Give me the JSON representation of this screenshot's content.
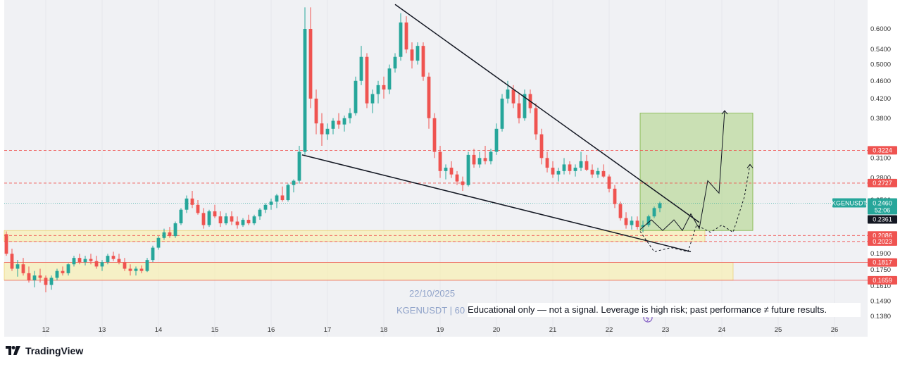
{
  "app": {
    "brand": "TradingView"
  },
  "watermark": {
    "date": "22/10/2025",
    "symbol": "KGENUSDT | 60"
  },
  "disclaimer": "Educational only — not a signal. Leverage is high risk; past performance ≠ future results.",
  "colors": {
    "up": "#26a69a",
    "down": "#ef5350",
    "zone": "#fbeea0",
    "target_box": "#9ccc65",
    "level_line": "#ef5350",
    "trendline": "#131722",
    "symbol_tag": "#26a69a",
    "price_tag": "#131722"
  },
  "chart_data": {
    "type": "candlestick",
    "symbol": "KGENUSDT",
    "timeframe": "60",
    "y_scale": "log",
    "ylim": [
      0.135,
      0.68
    ],
    "x_axis_ticks": [
      "12",
      "13",
      "14",
      "15",
      "16",
      "17",
      "18",
      "19",
      "20",
      "21",
      "22",
      "23",
      "24",
      "25",
      "26"
    ],
    "y_axis_ticks": [
      0.6,
      0.54,
      0.5,
      0.46,
      0.42,
      0.38,
      0.31,
      0.28,
      0.25,
      0.19,
      0.175,
      0.161,
      0.149,
      0.138
    ],
    "price_levels": [
      {
        "label": "0.3224",
        "value": 0.3224,
        "style": "dashed"
      },
      {
        "label": "0.2727",
        "value": 0.2727,
        "style": "dashed"
      },
      {
        "label": "0.2086",
        "value": 0.2086,
        "style": "dashed"
      },
      {
        "label": "0.2023",
        "value": 0.2023,
        "style": "dashed"
      },
      {
        "label": "0.1817",
        "value": 0.1817,
        "style": "solid"
      },
      {
        "label": "0.1659",
        "value": 0.1659,
        "style": "solid"
      }
    ],
    "last_price": {
      "symbol": "KGENUSDT",
      "price": "0.2460",
      "countdown": "52:06",
      "other": "0.2361",
      "value": 0.246
    },
    "zones": [
      {
        "name": "support-upper",
        "from_day": 11.0,
        "to_day": 23.7,
        "low": 0.2023,
        "high": 0.214
      },
      {
        "name": "support-lower",
        "from_day": 11.0,
        "to_day": 24.2,
        "low": 0.1659,
        "high": 0.1817
      }
    ],
    "target_box": {
      "from_day": 22.55,
      "to_day": 24.55,
      "low": 0.214,
      "high": 0.39
    },
    "trendlines": [
      {
        "name": "upper",
        "from": [
          18.2,
          0.68
        ],
        "to": [
          23.6,
          0.223
        ]
      },
      {
        "name": "lower",
        "from": [
          16.55,
          0.315
        ],
        "to": [
          23.45,
          0.192
        ]
      }
    ],
    "projection_solid": [
      [
        22.55,
        0.215
      ],
      [
        22.75,
        0.226
      ],
      [
        22.95,
        0.214
      ],
      [
        23.15,
        0.226
      ],
      [
        23.3,
        0.214
      ],
      [
        23.45,
        0.233
      ],
      [
        23.6,
        0.216
      ],
      [
        23.75,
        0.276
      ],
      [
        23.95,
        0.259
      ],
      [
        24.05,
        0.395
      ]
    ],
    "projection_dashed": [
      [
        22.55,
        0.213
      ],
      [
        22.8,
        0.192
      ],
      [
        23.1,
        0.196
      ],
      [
        23.4,
        0.192
      ],
      [
        23.55,
        0.22
      ],
      [
        23.8,
        0.212
      ],
      [
        24.0,
        0.22
      ],
      [
        24.2,
        0.212
      ],
      [
        24.4,
        0.254
      ],
      [
        24.5,
        0.3
      ]
    ],
    "candles": [
      [
        11.0,
        0.236,
        0.242,
        0.228,
        0.231
      ],
      [
        11.1,
        0.231,
        0.236,
        0.222,
        0.224
      ],
      [
        11.2,
        0.224,
        0.228,
        0.208,
        0.21
      ],
      [
        11.3,
        0.21,
        0.213,
        0.188,
        0.19
      ],
      [
        11.4,
        0.19,
        0.195,
        0.174,
        0.176
      ],
      [
        11.5,
        0.176,
        0.184,
        0.169,
        0.18
      ],
      [
        11.6,
        0.18,
        0.186,
        0.17,
        0.172
      ],
      [
        11.7,
        0.172,
        0.178,
        0.164,
        0.166
      ],
      [
        11.8,
        0.166,
        0.174,
        0.16,
        0.17
      ],
      [
        11.9,
        0.17,
        0.176,
        0.164,
        0.168
      ],
      [
        12.0,
        0.168,
        0.17,
        0.156,
        0.162
      ],
      [
        12.1,
        0.162,
        0.17,
        0.158,
        0.168
      ],
      [
        12.2,
        0.168,
        0.176,
        0.166,
        0.174
      ],
      [
        12.3,
        0.174,
        0.178,
        0.17,
        0.172
      ],
      [
        12.4,
        0.172,
        0.181,
        0.17,
        0.18
      ],
      [
        12.5,
        0.18,
        0.188,
        0.178,
        0.186
      ],
      [
        12.6,
        0.186,
        0.19,
        0.18,
        0.182
      ],
      [
        12.7,
        0.182,
        0.188,
        0.179,
        0.185
      ],
      [
        12.8,
        0.185,
        0.19,
        0.18,
        0.183
      ],
      [
        12.9,
        0.183,
        0.188,
        0.176,
        0.178
      ],
      [
        13.0,
        0.178,
        0.184,
        0.174,
        0.182
      ],
      [
        13.1,
        0.182,
        0.19,
        0.18,
        0.188
      ],
      [
        13.2,
        0.188,
        0.192,
        0.183,
        0.185
      ],
      [
        13.3,
        0.185,
        0.19,
        0.18,
        0.182
      ],
      [
        13.4,
        0.182,
        0.186,
        0.174,
        0.176
      ],
      [
        13.5,
        0.176,
        0.18,
        0.17,
        0.174
      ],
      [
        13.6,
        0.174,
        0.178,
        0.17,
        0.176
      ],
      [
        13.7,
        0.176,
        0.179,
        0.172,
        0.174
      ],
      [
        13.8,
        0.174,
        0.186,
        0.173,
        0.184
      ],
      [
        13.9,
        0.184,
        0.198,
        0.182,
        0.196
      ],
      [
        14.0,
        0.196,
        0.208,
        0.194,
        0.206
      ],
      [
        14.1,
        0.206,
        0.216,
        0.204,
        0.212
      ],
      [
        14.2,
        0.212,
        0.218,
        0.206,
        0.208
      ],
      [
        14.3,
        0.208,
        0.224,
        0.206,
        0.222
      ],
      [
        14.4,
        0.222,
        0.24,
        0.22,
        0.238
      ],
      [
        14.5,
        0.238,
        0.256,
        0.234,
        0.252
      ],
      [
        14.6,
        0.252,
        0.262,
        0.24,
        0.244
      ],
      [
        14.7,
        0.244,
        0.25,
        0.232,
        0.234
      ],
      [
        14.8,
        0.234,
        0.24,
        0.216,
        0.22
      ],
      [
        14.9,
        0.22,
        0.238,
        0.218,
        0.236
      ],
      [
        15.0,
        0.236,
        0.244,
        0.228,
        0.23
      ],
      [
        15.1,
        0.23,
        0.236,
        0.218,
        0.222
      ],
      [
        15.2,
        0.222,
        0.234,
        0.22,
        0.23
      ],
      [
        15.3,
        0.23,
        0.236,
        0.22,
        0.224
      ],
      [
        15.4,
        0.224,
        0.23,
        0.216,
        0.22
      ],
      [
        15.5,
        0.22,
        0.228,
        0.218,
        0.226
      ],
      [
        15.6,
        0.226,
        0.232,
        0.22,
        0.222
      ],
      [
        15.7,
        0.222,
        0.232,
        0.22,
        0.23
      ],
      [
        15.8,
        0.23,
        0.24,
        0.226,
        0.238
      ],
      [
        15.9,
        0.238,
        0.246,
        0.234,
        0.244
      ],
      [
        16.0,
        0.244,
        0.252,
        0.238,
        0.248
      ],
      [
        16.1,
        0.248,
        0.258,
        0.24,
        0.256
      ],
      [
        16.2,
        0.256,
        0.268,
        0.248,
        0.25
      ],
      [
        16.3,
        0.25,
        0.272,
        0.248,
        0.27
      ],
      [
        16.4,
        0.27,
        0.278,
        0.26,
        0.276
      ],
      [
        16.5,
        0.276,
        0.33,
        0.272,
        0.32
      ],
      [
        16.6,
        0.32,
        0.67,
        0.315,
        0.6
      ],
      [
        16.7,
        0.6,
        0.67,
        0.4,
        0.42
      ],
      [
        16.8,
        0.42,
        0.44,
        0.35,
        0.37
      ],
      [
        16.9,
        0.37,
        0.39,
        0.33,
        0.35
      ],
      [
        17.0,
        0.35,
        0.37,
        0.34,
        0.36
      ],
      [
        17.1,
        0.36,
        0.38,
        0.35,
        0.375
      ],
      [
        17.2,
        0.375,
        0.39,
        0.36,
        0.368
      ],
      [
        17.3,
        0.368,
        0.385,
        0.355,
        0.38
      ],
      [
        17.4,
        0.38,
        0.4,
        0.37,
        0.39
      ],
      [
        17.5,
        0.39,
        0.47,
        0.385,
        0.46
      ],
      [
        17.6,
        0.46,
        0.55,
        0.45,
        0.52
      ],
      [
        17.7,
        0.52,
        0.53,
        0.4,
        0.41
      ],
      [
        17.8,
        0.41,
        0.44,
        0.39,
        0.43
      ],
      [
        17.9,
        0.43,
        0.46,
        0.41,
        0.45
      ],
      [
        18.0,
        0.45,
        0.47,
        0.42,
        0.44
      ],
      [
        18.1,
        0.44,
        0.5,
        0.43,
        0.49
      ],
      [
        18.2,
        0.49,
        0.53,
        0.48,
        0.52
      ],
      [
        18.3,
        0.52,
        0.65,
        0.51,
        0.62
      ],
      [
        18.4,
        0.62,
        0.64,
        0.53,
        0.54
      ],
      [
        18.5,
        0.54,
        0.56,
        0.49,
        0.51
      ],
      [
        18.6,
        0.51,
        0.56,
        0.5,
        0.55
      ],
      [
        18.7,
        0.55,
        0.56,
        0.46,
        0.47
      ],
      [
        18.8,
        0.47,
        0.48,
        0.36,
        0.38
      ],
      [
        18.9,
        0.38,
        0.39,
        0.31,
        0.32
      ],
      [
        19.0,
        0.32,
        0.33,
        0.28,
        0.29
      ],
      [
        19.1,
        0.29,
        0.3,
        0.278,
        0.295
      ],
      [
        19.2,
        0.295,
        0.305,
        0.28,
        0.285
      ],
      [
        19.3,
        0.285,
        0.29,
        0.27,
        0.275
      ],
      [
        19.4,
        0.275,
        0.282,
        0.262,
        0.27
      ],
      [
        19.5,
        0.27,
        0.32,
        0.268,
        0.315
      ],
      [
        19.6,
        0.315,
        0.325,
        0.295,
        0.3
      ],
      [
        19.7,
        0.3,
        0.32,
        0.295,
        0.31
      ],
      [
        19.8,
        0.31,
        0.33,
        0.3,
        0.305
      ],
      [
        19.9,
        0.305,
        0.325,
        0.3,
        0.32
      ],
      [
        20.0,
        0.32,
        0.37,
        0.315,
        0.36
      ],
      [
        20.1,
        0.36,
        0.43,
        0.355,
        0.42
      ],
      [
        20.2,
        0.42,
        0.46,
        0.41,
        0.44
      ],
      [
        20.3,
        0.44,
        0.45,
        0.4,
        0.41
      ],
      [
        20.4,
        0.41,
        0.43,
        0.37,
        0.38
      ],
      [
        20.5,
        0.38,
        0.44,
        0.375,
        0.43
      ],
      [
        20.6,
        0.43,
        0.44,
        0.39,
        0.4
      ],
      [
        20.7,
        0.4,
        0.41,
        0.34,
        0.35
      ],
      [
        20.8,
        0.35,
        0.36,
        0.3,
        0.31
      ],
      [
        20.9,
        0.31,
        0.32,
        0.288,
        0.295
      ],
      [
        21.0,
        0.295,
        0.305,
        0.28,
        0.285
      ],
      [
        21.1,
        0.285,
        0.295,
        0.275,
        0.29
      ],
      [
        21.2,
        0.29,
        0.31,
        0.285,
        0.3
      ],
      [
        21.3,
        0.3,
        0.305,
        0.285,
        0.29
      ],
      [
        21.4,
        0.29,
        0.3,
        0.282,
        0.295
      ],
      [
        21.5,
        0.295,
        0.32,
        0.29,
        0.305
      ],
      [
        21.6,
        0.305,
        0.315,
        0.29,
        0.292
      ],
      [
        21.7,
        0.292,
        0.3,
        0.28,
        0.285
      ],
      [
        21.8,
        0.285,
        0.295,
        0.28,
        0.29
      ],
      [
        21.9,
        0.29,
        0.3,
        0.28,
        0.282
      ],
      [
        22.0,
        0.282,
        0.285,
        0.26,
        0.265
      ],
      [
        22.1,
        0.265,
        0.27,
        0.24,
        0.245
      ],
      [
        22.2,
        0.245,
        0.248,
        0.225,
        0.228
      ],
      [
        22.3,
        0.228,
        0.235,
        0.216,
        0.22
      ],
      [
        22.4,
        0.22,
        0.23,
        0.215,
        0.225
      ],
      [
        22.5,
        0.225,
        0.23,
        0.215,
        0.218
      ],
      [
        22.6,
        0.218,
        0.225,
        0.212,
        0.22
      ],
      [
        22.7,
        0.22,
        0.232,
        0.218,
        0.23
      ],
      [
        22.8,
        0.23,
        0.242,
        0.228,
        0.24
      ],
      [
        22.9,
        0.24,
        0.248,
        0.235,
        0.246
      ]
    ]
  }
}
